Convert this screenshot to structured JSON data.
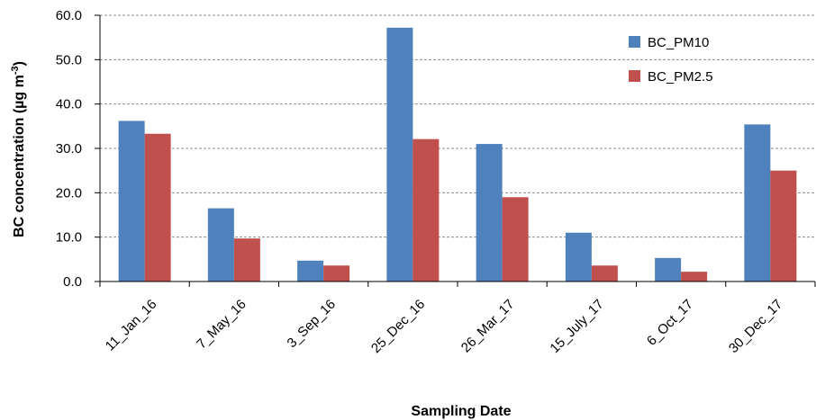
{
  "chart_data": {
    "type": "bar",
    "categories": [
      "11_Jan_16",
      "7_May_16",
      "3_Sep_16",
      "25_Dec_16",
      "26_Mar_17",
      "15_July_17",
      "6_Oct_17",
      "30_Dec_17"
    ],
    "series": [
      {
        "name": "BC_PM10",
        "color": "#4F81BD",
        "values": [
          36.2,
          16.5,
          4.7,
          57.2,
          31.0,
          11.0,
          5.3,
          35.4
        ]
      },
      {
        "name": "BC_PM2.5",
        "color": "#C0504D",
        "values": [
          33.3,
          9.7,
          3.6,
          32.1,
          19.0,
          3.6,
          2.2,
          25.0
        ]
      }
    ],
    "title": "",
    "xlabel": "Sampling Date",
    "ylabel": "BC concentration (µg m",
    "ylabel_superscript": "-3",
    "ylabel_close": ")",
    "ylim": [
      0,
      60
    ],
    "yticks": [
      "0.0",
      "10.0",
      "20.0",
      "30.0",
      "40.0",
      "50.0",
      "60.0"
    ],
    "grid": true,
    "legend_position": "top-right"
  }
}
